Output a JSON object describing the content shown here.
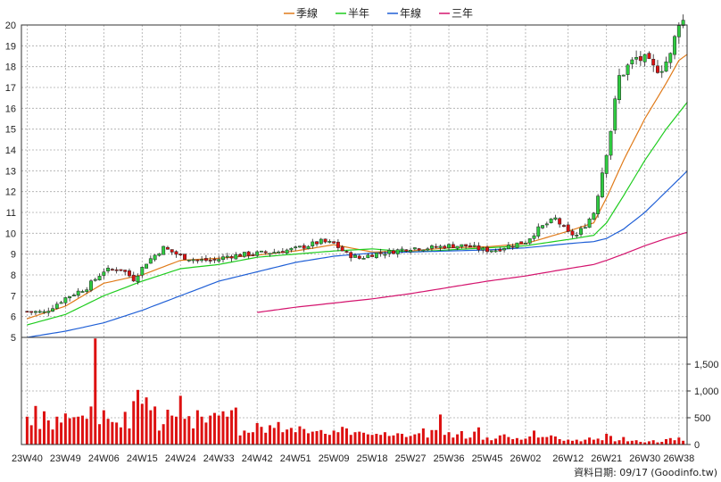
{
  "legend": [
    {
      "label": "季線",
      "color": "#e07b1a"
    },
    {
      "label": "半年",
      "color": "#1ecc1e"
    },
    {
      "label": "年線",
      "color": "#1f5fd6"
    },
    {
      "label": "三年",
      "color": "#d4146e"
    }
  ],
  "credit": {
    "label": "資料日期: 09/17",
    "source": "(Goodinfo.tw)"
  },
  "colors": {
    "up_candle": "#2ecc40",
    "down_candle": "#dd1111",
    "volume_bar": "#dd1111",
    "grid": "#aaaaaa"
  },
  "chart_data": [
    {
      "type": "candlestick",
      "title": "",
      "ylim": [
        5,
        20
      ],
      "yticks": [
        5,
        6,
        7,
        8,
        9,
        10,
        11,
        12,
        13,
        14,
        15,
        16,
        17,
        18,
        19,
        20
      ],
      "x_tick_labels": [
        "23W40",
        "23W49",
        "24W06",
        "24W15",
        "24W24",
        "24W33",
        "24W42",
        "24W51",
        "25W09",
        "25W18",
        "25W27",
        "25W36",
        "25W45",
        "26W02",
        "26W12",
        "26W21",
        "26W30",
        "26W38"
      ],
      "x_tick_index": [
        0,
        9,
        18,
        27,
        36,
        45,
        54,
        63,
        72,
        81,
        90,
        99,
        108,
        117,
        127,
        136,
        145,
        153
      ],
      "weeks": 155,
      "close_keypoints": [
        [
          0,
          6.25
        ],
        [
          4,
          6.2
        ],
        [
          9,
          6.9
        ],
        [
          14,
          7.4
        ],
        [
          18,
          8.2
        ],
        [
          22,
          8.3
        ],
        [
          25,
          7.8
        ],
        [
          28,
          8.6
        ],
        [
          32,
          9.3
        ],
        [
          36,
          8.9
        ],
        [
          40,
          8.7
        ],
        [
          44,
          8.7
        ],
        [
          47,
          8.9
        ],
        [
          52,
          9.0
        ],
        [
          58,
          9.1
        ],
        [
          63,
          9.25
        ],
        [
          69,
          9.6
        ],
        [
          72,
          9.5
        ],
        [
          75,
          9.0
        ],
        [
          78,
          8.8
        ],
        [
          81,
          9.0
        ],
        [
          85,
          9.1
        ],
        [
          90,
          9.3
        ],
        [
          95,
          9.3
        ],
        [
          99,
          9.4
        ],
        [
          103,
          9.4
        ],
        [
          107,
          9.2
        ],
        [
          110,
          9.2
        ],
        [
          113,
          9.4
        ],
        [
          117,
          9.6
        ],
        [
          120,
          10.2
        ],
        [
          124,
          10.7
        ],
        [
          127,
          10.0
        ],
        [
          129,
          9.9
        ],
        [
          131,
          10.4
        ],
        [
          133,
          11.0
        ],
        [
          135,
          13.0
        ],
        [
          137,
          15.0
        ],
        [
          139,
          17.5
        ],
        [
          141,
          18.0
        ],
        [
          143,
          18.4
        ],
        [
          145,
          18.3
        ],
        [
          147,
          17.9
        ],
        [
          149,
          18.0
        ],
        [
          151,
          18.5
        ],
        [
          153,
          20.2
        ]
      ],
      "series": [
        {
          "name": "季線",
          "start_index": 0,
          "keypoints": [
            [
              0,
              5.9
            ],
            [
              9,
              6.5
            ],
            [
              18,
              7.6
            ],
            [
              27,
              8.0
            ],
            [
              36,
              8.7
            ],
            [
              45,
              8.8
            ],
            [
              54,
              8.95
            ],
            [
              63,
              9.15
            ],
            [
              72,
              9.45
            ],
            [
              81,
              9.1
            ],
            [
              90,
              9.15
            ],
            [
              99,
              9.3
            ],
            [
              108,
              9.35
            ],
            [
              117,
              9.5
            ],
            [
              127,
              10.1
            ],
            [
              133,
              10.5
            ],
            [
              136,
              11.7
            ],
            [
              140,
              13.5
            ],
            [
              145,
              15.5
            ],
            [
              150,
              17.2
            ],
            [
              153,
              18.3
            ],
            [
              155,
              18.6
            ]
          ]
        },
        {
          "name": "半年",
          "start_index": 0,
          "keypoints": [
            [
              0,
              5.6
            ],
            [
              9,
              6.1
            ],
            [
              18,
              7.0
            ],
            [
              27,
              7.7
            ],
            [
              36,
              8.3
            ],
            [
              45,
              8.5
            ],
            [
              54,
              8.85
            ],
            [
              63,
              9.0
            ],
            [
              72,
              9.15
            ],
            [
              81,
              9.25
            ],
            [
              90,
              9.1
            ],
            [
              99,
              9.2
            ],
            [
              108,
              9.3
            ],
            [
              117,
              9.4
            ],
            [
              127,
              9.7
            ],
            [
              133,
              9.9
            ],
            [
              136,
              10.5
            ],
            [
              140,
              11.8
            ],
            [
              145,
              13.5
            ],
            [
              150,
              15.0
            ],
            [
              155,
              16.3
            ]
          ]
        },
        {
          "name": "年線",
          "start_index": 0,
          "keypoints": [
            [
              0,
              5.0
            ],
            [
              9,
              5.3
            ],
            [
              18,
              5.7
            ],
            [
              27,
              6.3
            ],
            [
              36,
              7.0
            ],
            [
              45,
              7.7
            ],
            [
              54,
              8.15
            ],
            [
              63,
              8.6
            ],
            [
              72,
              8.9
            ],
            [
              81,
              9.05
            ],
            [
              90,
              9.1
            ],
            [
              99,
              9.15
            ],
            [
              108,
              9.2
            ],
            [
              117,
              9.3
            ],
            [
              127,
              9.5
            ],
            [
              133,
              9.6
            ],
            [
              136,
              9.75
            ],
            [
              140,
              10.2
            ],
            [
              145,
              11.0
            ],
            [
              150,
              12.0
            ],
            [
              155,
              13.0
            ]
          ]
        },
        {
          "name": "三年",
          "start_index": 54,
          "keypoints": [
            [
              54,
              6.2
            ],
            [
              63,
              6.45
            ],
            [
              72,
              6.65
            ],
            [
              81,
              6.85
            ],
            [
              90,
              7.1
            ],
            [
              99,
              7.4
            ],
            [
              108,
              7.7
            ],
            [
              117,
              7.95
            ],
            [
              127,
              8.3
            ],
            [
              133,
              8.5
            ],
            [
              136,
              8.7
            ],
            [
              140,
              9.0
            ],
            [
              145,
              9.4
            ],
            [
              150,
              9.75
            ],
            [
              155,
              10.05
            ]
          ]
        }
      ]
    },
    {
      "type": "bar",
      "title": "",
      "ylabel": "",
      "ylim": [
        0,
        2000
      ],
      "yticks": [
        0,
        500,
        1000,
        1500
      ],
      "ytick_labels": [
        "0",
        "500",
        "1,000",
        "1,500"
      ],
      "values": [
        520,
        360,
        720,
        290,
        620,
        450,
        280,
        520,
        410,
        580,
        490,
        510,
        520,
        540,
        480,
        710,
        1980,
        380,
        640,
        480,
        420,
        410,
        320,
        610,
        300,
        810,
        1020,
        760,
        880,
        640,
        710,
        260,
        380,
        650,
        540,
        520,
        910,
        480,
        530,
        300,
        640,
        520,
        410,
        540,
        590,
        540,
        620,
        520,
        640,
        690,
        170,
        260,
        220,
        230,
        400,
        330,
        220,
        360,
        310,
        420,
        230,
        280,
        310,
        230,
        340,
        290,
        210,
        240,
        250,
        270,
        200,
        180,
        260,
        230,
        330,
        300,
        180,
        230,
        240,
        220,
        190,
        180,
        200,
        180,
        230,
        160,
        170,
        210,
        200,
        140,
        160,
        190,
        210,
        300,
        130,
        270,
        270,
        560,
        180,
        230,
        130,
        190,
        250,
        110,
        130,
        240,
        320,
        90,
        130,
        80,
        110,
        170,
        190,
        140,
        100,
        120,
        90,
        110,
        150,
        260,
        130,
        140,
        140,
        170,
        150,
        100,
        70,
        90,
        70,
        90,
        60,
        90,
        130,
        90,
        110,
        80,
        200,
        160,
        60,
        80,
        140,
        60,
        70,
        80,
        50,
        40,
        60,
        80,
        40,
        50,
        100,
        120,
        80,
        130,
        70
      ]
    }
  ]
}
